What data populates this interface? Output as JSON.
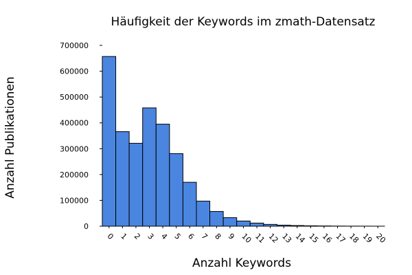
{
  "chart_data": {
    "type": "bar",
    "title": "Häufigkeit der Keywords im zmath-Datensatz",
    "xlabel": "Anzahl Keywords",
    "ylabel": "Anzahl Publikationen",
    "categories": [
      "0",
      "1",
      "2",
      "3",
      "4",
      "5",
      "6",
      "7",
      "8",
      "9",
      "10",
      "11",
      "12",
      "13",
      "14",
      "15",
      "16",
      "17",
      "18",
      "19",
      "20"
    ],
    "values": [
      657000,
      366000,
      321000,
      458000,
      395000,
      281000,
      170000,
      97000,
      57000,
      33000,
      20000,
      12000,
      7000,
      4000,
      2500,
      1500,
      1000,
      500,
      300,
      200,
      100
    ],
    "ylim": [
      0,
      700000
    ],
    "yticks": [
      "0",
      "100000",
      "200000",
      "300000",
      "400000",
      "500000",
      "600000",
      "700000"
    ],
    "bar_color": "#4a86e0",
    "grid": false
  }
}
